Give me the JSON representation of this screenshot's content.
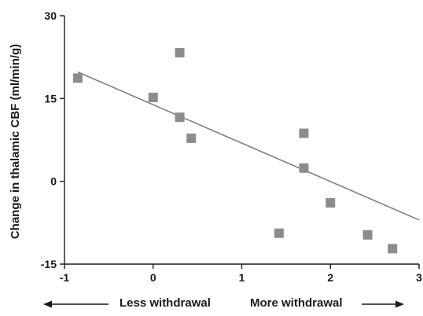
{
  "chart_data": {
    "type": "scatter",
    "title": "",
    "xlabel": "",
    "ylabel": "Change in thalamic CBF (ml/min/g)",
    "xlim": [
      -1,
      3
    ],
    "ylim": [
      -15,
      30
    ],
    "x_ticks": [
      "-1",
      "0",
      "1",
      "2",
      "3"
    ],
    "y_ticks": [
      "30",
      "15",
      "0",
      "-15"
    ],
    "grid": false,
    "legend": "none",
    "colors": {
      "points": "#8c8c8c",
      "trendline": "#808080",
      "axis": "#1a1a1a"
    },
    "series": [
      {
        "points": [
          {
            "x": -0.85,
            "y": 18.7
          },
          {
            "x": 0.0,
            "y": 15.2
          },
          {
            "x": 0.3,
            "y": 23.3
          },
          {
            "x": 0.3,
            "y": 11.6
          },
          {
            "x": 0.43,
            "y": 7.8
          },
          {
            "x": 1.42,
            "y": -9.4
          },
          {
            "x": 1.7,
            "y": 8.7
          },
          {
            "x": 1.7,
            "y": 2.4
          },
          {
            "x": 2.0,
            "y": -3.9
          },
          {
            "x": 2.42,
            "y": -9.7
          },
          {
            "x": 2.7,
            "y": -12.2
          }
        ]
      }
    ],
    "trendline": {
      "start": {
        "x": -0.85,
        "y": 19.8
      },
      "end": {
        "x": 3.0,
        "y": -7.0
      }
    },
    "annotations": {
      "left": "Less withdrawal",
      "right": "More withdrawal"
    }
  }
}
